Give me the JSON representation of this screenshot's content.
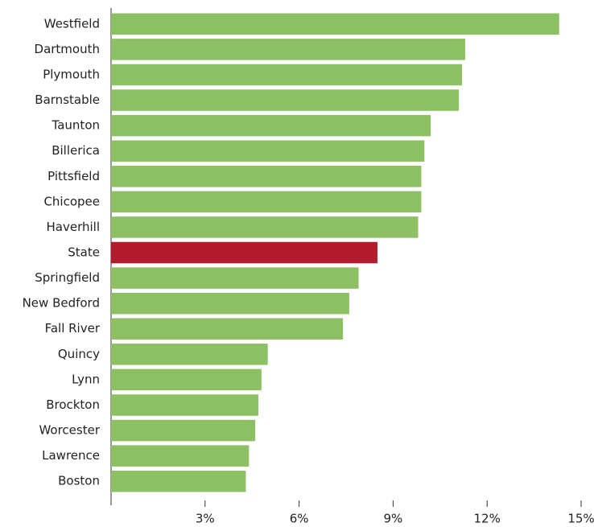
{
  "chart_data": {
    "type": "hbar",
    "categories": [
      "Westfield",
      "Dartmouth",
      "Plymouth",
      "Barnstable",
      "Taunton",
      "Billerica",
      "Pittsfield",
      "Chicopee",
      "Haverhill",
      "State",
      "Springfield",
      "New Bedford",
      "Fall River",
      "Quincy",
      "Lynn",
      "Brockton",
      "Worcester",
      "Lawrence",
      "Boston"
    ],
    "values": [
      14.3,
      11.3,
      11.2,
      11.1,
      10.2,
      10.0,
      9.9,
      9.9,
      9.8,
      8.5,
      7.9,
      7.6,
      7.4,
      5.0,
      4.8,
      4.7,
      4.6,
      4.4,
      4.3
    ],
    "colors": [
      "#8cc063",
      "#8cc063",
      "#8cc063",
      "#8cc063",
      "#8cc063",
      "#8cc063",
      "#8cc063",
      "#8cc063",
      "#8cc063",
      "#b31b2c",
      "#8cc063",
      "#8cc063",
      "#8cc063",
      "#8cc063",
      "#8cc063",
      "#8cc063",
      "#8cc063",
      "#8cc063",
      "#8cc063"
    ],
    "xlim": [
      0,
      15
    ],
    "xticks": [
      {
        "value": 3,
        "label": "3%"
      },
      {
        "value": 6,
        "label": "6%"
      },
      {
        "value": 9,
        "label": "9%"
      },
      {
        "value": 12,
        "label": "12%"
      },
      {
        "value": 15,
        "label": "15%"
      }
    ],
    "grid": false
  }
}
